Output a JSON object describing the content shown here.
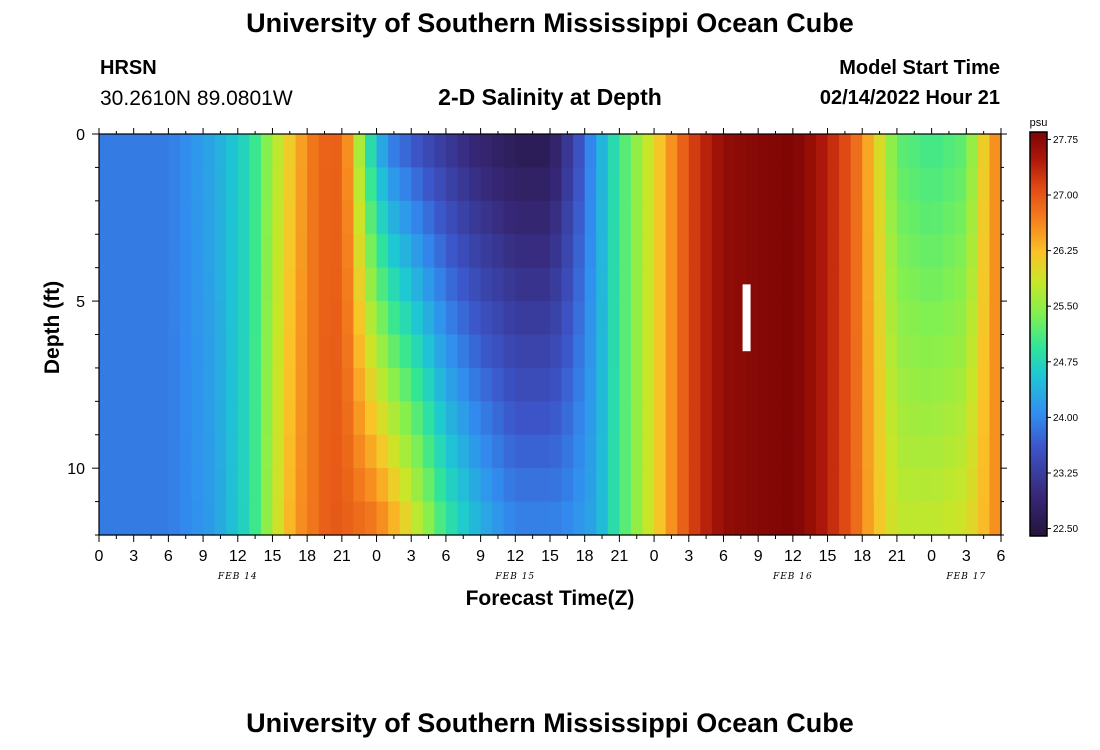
{
  "page": {
    "title": "University of Southern Mississippi Ocean Cube",
    "footer_title": "University of Southern Mississippi Ocean Cube",
    "station": "HRSN",
    "coords": "30.2610N  89.0801W",
    "plot_title": "2-D Salinity at Depth",
    "model_start_label": "Model Start Time",
    "model_start_value": "02/14/2022 Hour 21"
  },
  "chart_data": {
    "type": "heatmap",
    "title": "2-D Salinity at Depth",
    "xlabel": "Forecast Time(Z)",
    "ylabel": "Depth (ft)",
    "x_tick_labels": [
      "0",
      "3",
      "6",
      "9",
      "12",
      "15",
      "18",
      "21",
      "0",
      "3",
      "6",
      "9",
      "12",
      "15",
      "18",
      "21",
      "0",
      "3",
      "6",
      "9",
      "12",
      "15",
      "18",
      "21",
      "0",
      "3",
      "6"
    ],
    "x_hours": [
      0,
      3,
      6,
      9,
      12,
      15,
      18,
      21,
      24,
      27,
      30,
      33,
      36,
      39,
      42,
      45,
      48,
      51,
      54,
      57,
      60,
      63,
      66,
      69,
      72,
      75,
      78
    ],
    "date_labels": [
      {
        "hour": 12,
        "text": "FEB 14"
      },
      {
        "hour": 36,
        "text": "FEB 15"
      },
      {
        "hour": 60,
        "text": "FEB 16"
      },
      {
        "hour": 75,
        "text": "FEB 17"
      }
    ],
    "xlim": [
      0,
      78
    ],
    "y_tick_labels": [
      "0",
      "5",
      "10"
    ],
    "y_ticks": [
      0,
      5,
      10
    ],
    "ylim": [
      0,
      12
    ],
    "y_inverted": true,
    "colorbar": {
      "unit": "psu",
      "min": 22.4,
      "max": 27.85,
      "tick_labels": [
        "22.50",
        "23.25",
        "24.00",
        "24.75",
        "25.50",
        "26.25",
        "27.00",
        "27.75"
      ],
      "ticks": [
        22.5,
        23.25,
        24.0,
        24.75,
        25.5,
        26.25,
        27.0,
        27.75
      ]
    },
    "salinity_surface_psu": [
      {
        "hour": 0,
        "value": 23.9
      },
      {
        "hour": 6,
        "value": 23.9
      },
      {
        "hour": 10,
        "value": 24.3
      },
      {
        "hour": 13,
        "value": 24.8
      },
      {
        "hour": 15,
        "value": 25.6
      },
      {
        "hour": 17,
        "value": 26.3
      },
      {
        "hour": 19,
        "value": 26.9
      },
      {
        "hour": 21,
        "value": 26.9
      },
      {
        "hour": 22,
        "value": 26.2
      },
      {
        "hour": 23,
        "value": 25.0
      },
      {
        "hour": 25,
        "value": 23.9
      },
      {
        "hour": 28,
        "value": 23.4
      },
      {
        "hour": 32,
        "value": 22.9
      },
      {
        "hour": 36,
        "value": 22.6
      },
      {
        "hour": 39,
        "value": 22.6
      },
      {
        "hour": 41,
        "value": 23.3
      },
      {
        "hour": 43,
        "value": 24.2
      },
      {
        "hour": 45,
        "value": 25.0
      },
      {
        "hour": 48,
        "value": 26.0
      },
      {
        "hour": 51,
        "value": 27.1
      },
      {
        "hour": 54,
        "value": 27.7
      },
      {
        "hour": 60,
        "value": 27.85
      },
      {
        "hour": 62,
        "value": 27.6
      },
      {
        "hour": 65,
        "value": 27.0
      },
      {
        "hour": 67,
        "value": 26.2
      },
      {
        "hour": 69,
        "value": 25.2
      },
      {
        "hour": 72,
        "value": 25.0
      },
      {
        "hour": 75,
        "value": 25.2
      },
      {
        "hour": 77,
        "value": 26.4
      },
      {
        "hour": 78,
        "value": 26.7
      }
    ],
    "salinity_bottom_psu": [
      {
        "hour": 0,
        "value": 23.9
      },
      {
        "hour": 6,
        "value": 23.9
      },
      {
        "hour": 10,
        "value": 24.2
      },
      {
        "hour": 13,
        "value": 24.8
      },
      {
        "hour": 15,
        "value": 25.7
      },
      {
        "hour": 17,
        "value": 26.5
      },
      {
        "hour": 20,
        "value": 27.0
      },
      {
        "hour": 24,
        "value": 26.8
      },
      {
        "hour": 26,
        "value": 26.3
      },
      {
        "hour": 28,
        "value": 25.7
      },
      {
        "hour": 30,
        "value": 25.0
      },
      {
        "hour": 33,
        "value": 24.4
      },
      {
        "hour": 36,
        "value": 24.0
      },
      {
        "hour": 40,
        "value": 24.0
      },
      {
        "hour": 43,
        "value": 24.3
      },
      {
        "hour": 45,
        "value": 25.0
      },
      {
        "hour": 48,
        "value": 26.0
      },
      {
        "hour": 51,
        "value": 27.1
      },
      {
        "hour": 54,
        "value": 27.7
      },
      {
        "hour": 60,
        "value": 27.85
      },
      {
        "hour": 62,
        "value": 27.6
      },
      {
        "hour": 65,
        "value": 27.0
      },
      {
        "hour": 67,
        "value": 26.3
      },
      {
        "hour": 69,
        "value": 25.8
      },
      {
        "hour": 72,
        "value": 25.8
      },
      {
        "hour": 75,
        "value": 25.9
      },
      {
        "hour": 77,
        "value": 26.4
      },
      {
        "hour": 78,
        "value": 26.7
      }
    ],
    "current_time_marker": {
      "hour": 56,
      "depth_top": 4.5,
      "depth_bottom": 6.5
    },
    "colors": {
      "marker": "#ffffff",
      "frame": "#000000"
    }
  }
}
